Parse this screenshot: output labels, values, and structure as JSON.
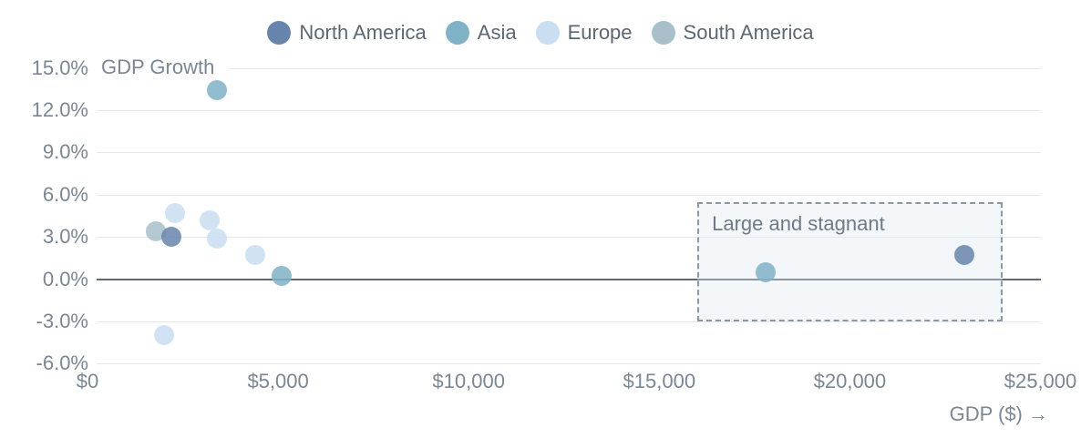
{
  "chart_data": {
    "type": "scatter",
    "title": "",
    "xlabel": "GDP ($) →",
    "ylabel": "GDP Growth",
    "xlim": [
      0,
      25000
    ],
    "ylim": [
      -6,
      15
    ],
    "grid": true,
    "legend_position": "top-center",
    "x_ticks": [
      {
        "value": 0,
        "label": "$0"
      },
      {
        "value": 5000,
        "label": "$5,000"
      },
      {
        "value": 10000,
        "label": "$10,000"
      },
      {
        "value": 15000,
        "label": "$15,000"
      },
      {
        "value": 20000,
        "label": "$20,000"
      },
      {
        "value": 25000,
        "label": "$25,000"
      }
    ],
    "y_ticks": [
      {
        "value": 15,
        "label": "15.0%"
      },
      {
        "value": 12,
        "label": "12.0%"
      },
      {
        "value": 9,
        "label": "9.0%"
      },
      {
        "value": 6,
        "label": "6.0%"
      },
      {
        "value": 3,
        "label": "3.0%"
      },
      {
        "value": 0,
        "label": "0.0%"
      },
      {
        "value": -3,
        "label": "-3.0%"
      },
      {
        "value": -6,
        "label": "-6.0%"
      }
    ],
    "series": [
      {
        "name": "North America",
        "color": "#6785ac",
        "points": [
          {
            "x": 2200,
            "y": 3.0
          },
          {
            "x": 23000,
            "y": 1.7
          }
        ]
      },
      {
        "name": "Asia",
        "color": "#7fb2c7",
        "points": [
          {
            "x": 3400,
            "y": 13.4
          },
          {
            "x": 5100,
            "y": 0.2
          },
          {
            "x": 17800,
            "y": 0.5
          }
        ]
      },
      {
        "name": "Europe",
        "color": "#c9def1",
        "points": [
          {
            "x": 2300,
            "y": 4.7
          },
          {
            "x": 3200,
            "y": 4.2
          },
          {
            "x": 3400,
            "y": 2.9
          },
          {
            "x": 4400,
            "y": 1.7
          },
          {
            "x": 2000,
            "y": -4.0
          }
        ]
      },
      {
        "name": "South America",
        "color": "#a9bfca",
        "points": [
          {
            "x": 1800,
            "y": 3.4
          }
        ]
      }
    ],
    "annotation": {
      "label": "Large and stagnant",
      "x_range": [
        16000,
        24000
      ],
      "y_range": [
        -3,
        5.5
      ]
    }
  },
  "colors": {
    "gridline": "#e5e7ed",
    "zero_line": "#5c6a7a",
    "tick_text": "#7b8694",
    "legend_text": "#5d6774",
    "annotation_border": "#8a97a6",
    "annotation_fill": "rgba(224,231,242,0.35)",
    "annotation_text": "#6e7a88"
  }
}
